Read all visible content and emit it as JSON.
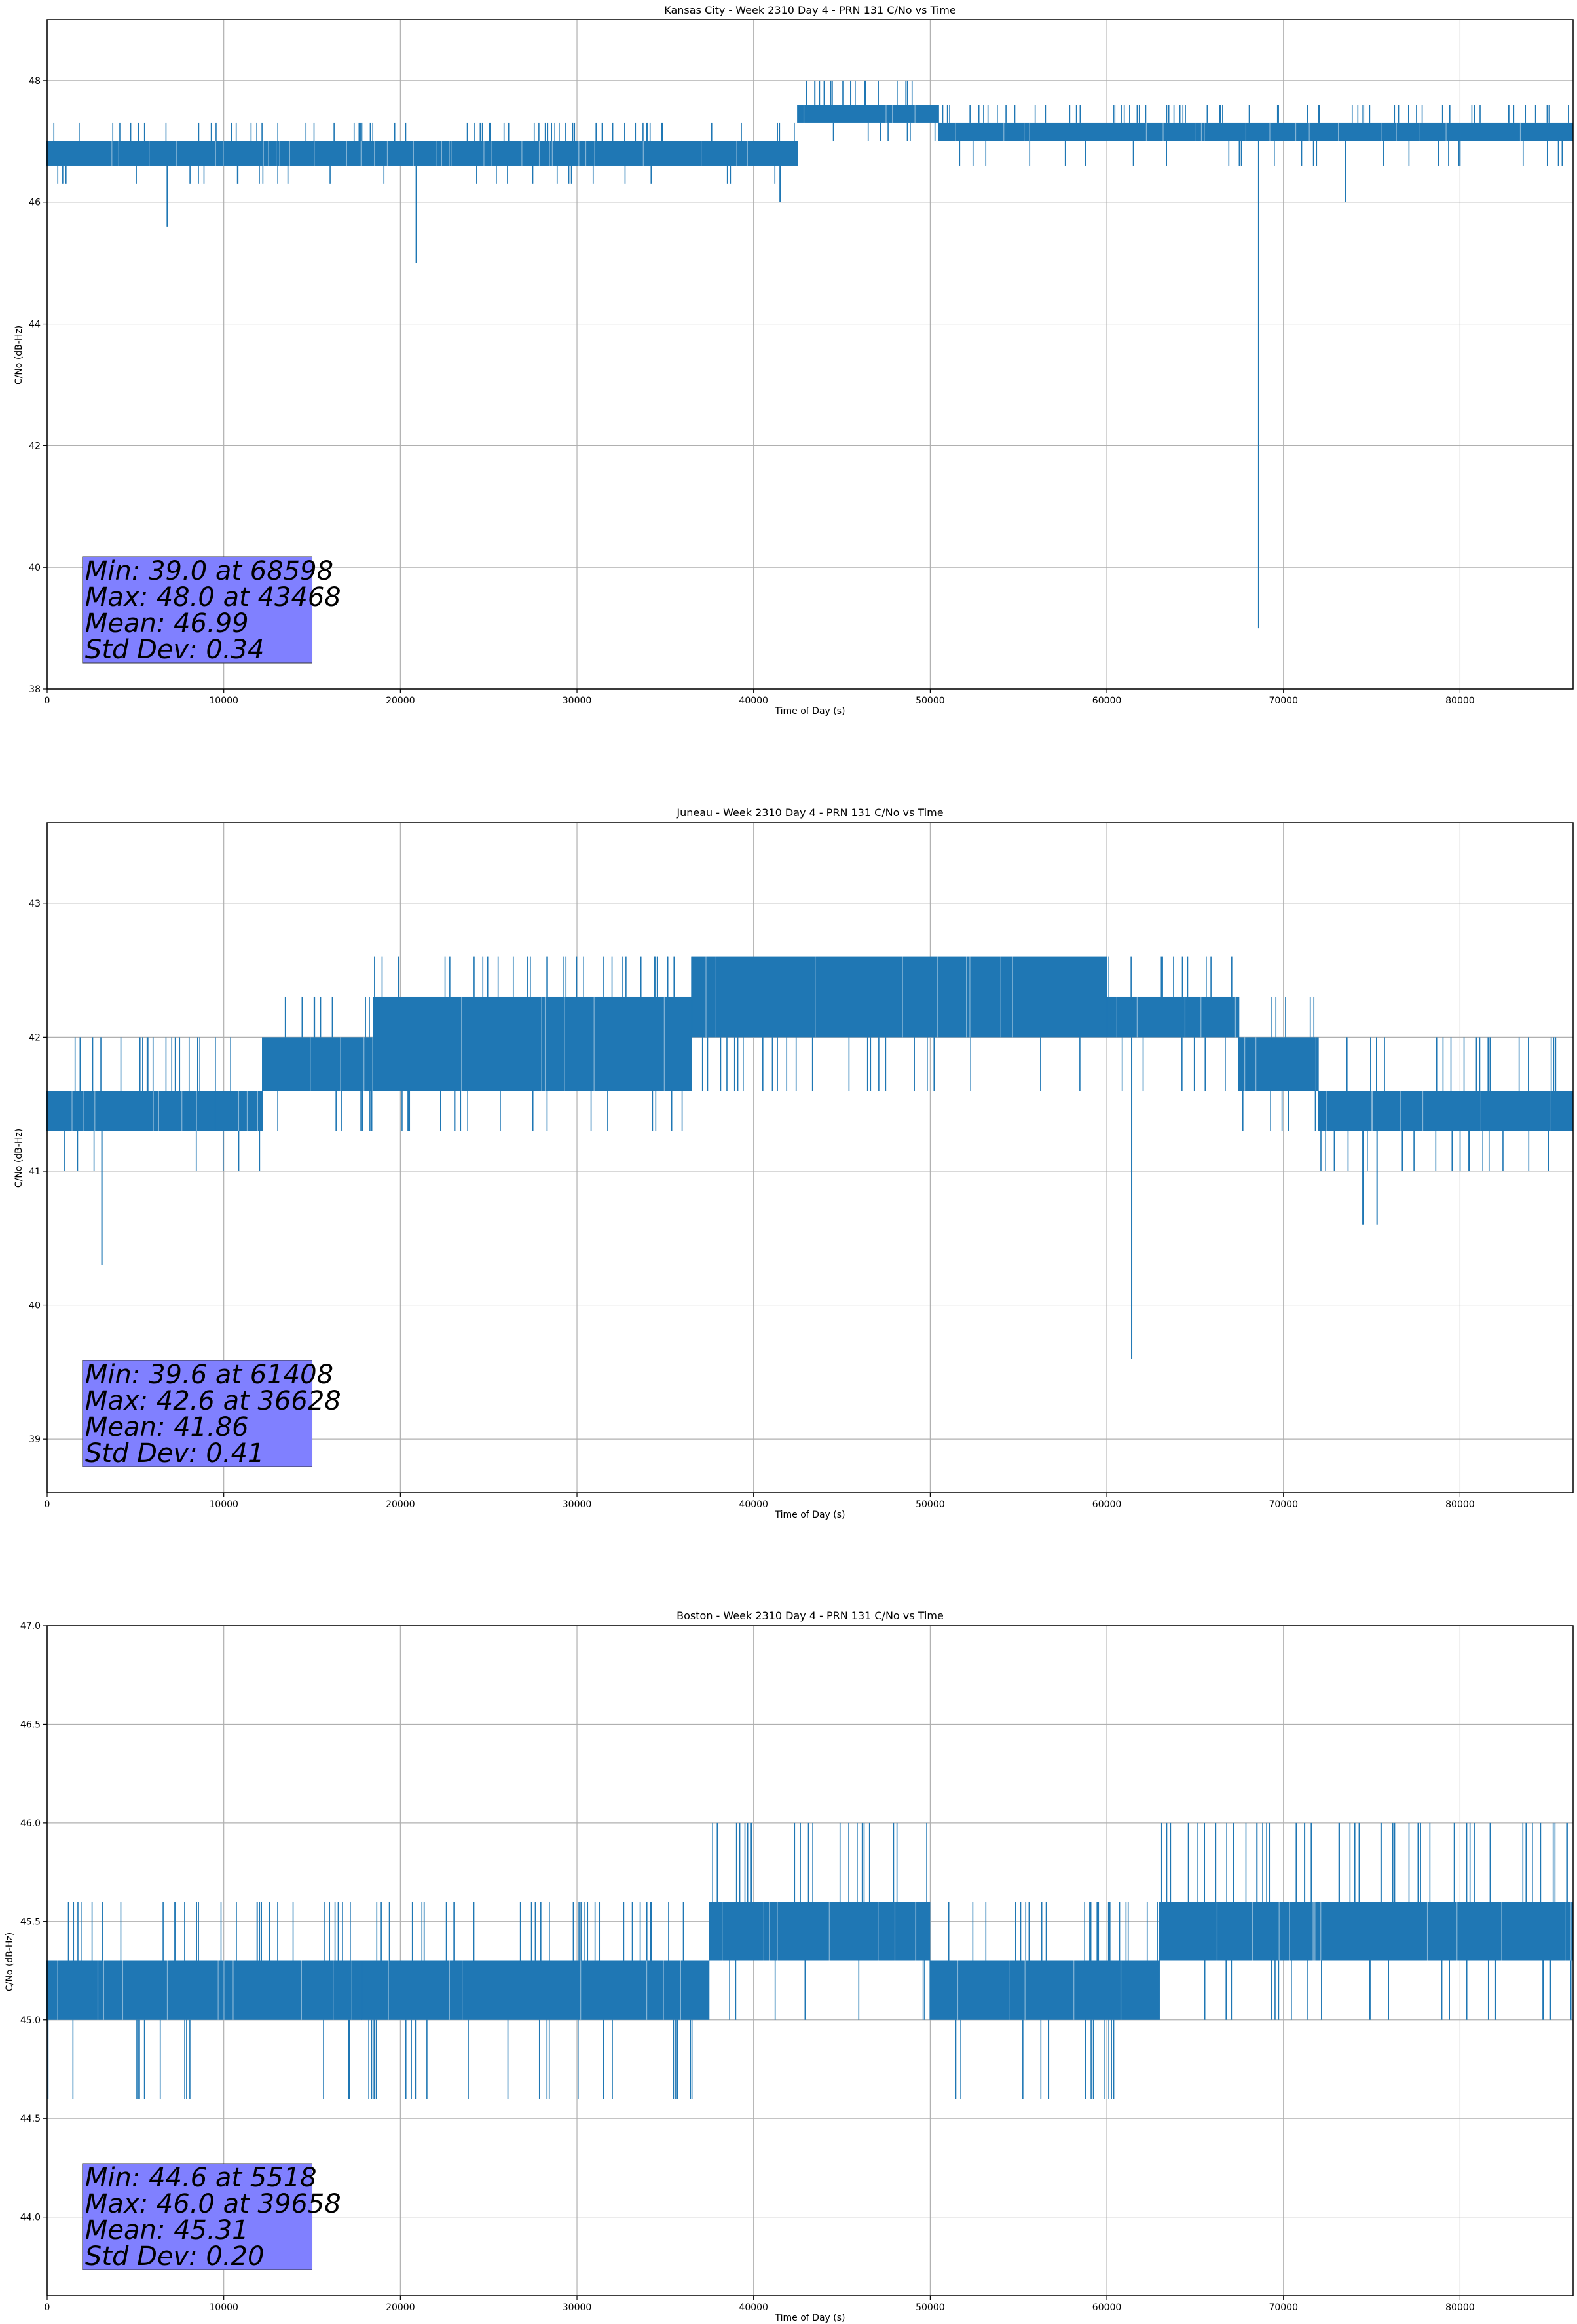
{
  "colors": {
    "line": "#1f77b4",
    "grid": "#b0b0b0",
    "stats_box": "#8080ff",
    "axis": "#000000"
  },
  "chart_data": [
    {
      "type": "line",
      "title": "Kansas City - Week 2310 Day 4 - PRN 131 C/No vs Time",
      "xlabel": "Time of Day (s)",
      "ylabel": "C/No (dB-Hz)",
      "xlim": [
        0,
        86400
      ],
      "ylim": [
        38,
        49
      ],
      "xticks": [
        0,
        10000,
        20000,
        30000,
        40000,
        50000,
        60000,
        70000,
        80000
      ],
      "yticks": [
        38,
        40,
        42,
        44,
        46,
        48
      ],
      "ytick_labels": [
        "38",
        "40",
        "42",
        "44",
        "46",
        "48"
      ],
      "grid": true,
      "segments": [
        {
          "x": [
            0,
            42500
          ],
          "low": 46.6,
          "high": 47.0,
          "spike_up": [
            47.3
          ],
          "spike_down": [
            46.3
          ]
        },
        {
          "x": [
            42500,
            50500
          ],
          "low": 47.3,
          "high": 47.6,
          "spike_up": [
            48.0
          ],
          "spike_down": [
            47.0
          ]
        },
        {
          "x": [
            50500,
            86400
          ],
          "low": 47.0,
          "high": 47.3,
          "spike_up": [
            47.6
          ],
          "spike_down": [
            46.6
          ]
        }
      ],
      "dips": [
        {
          "x": 6800,
          "y": 45.6
        },
        {
          "x": 20900,
          "y": 45.0
        },
        {
          "x": 41500,
          "y": 46.0
        },
        {
          "x": 68598,
          "y": 39.0
        },
        {
          "x": 73500,
          "y": 46.0
        }
      ],
      "peaks": [
        {
          "x": 43468,
          "y": 48.0
        },
        {
          "x": 45500,
          "y": 48.0
        },
        {
          "x": 46300,
          "y": 48.0
        }
      ],
      "stats": [
        "Min: 39.0 at 68598",
        "Max: 48.0 at 43468",
        "Mean: 46.99",
        "Std Dev: 0.34"
      ]
    },
    {
      "type": "line",
      "title": "Juneau - Week 2310 Day 4 - PRN 131 C/No vs Time",
      "xlabel": "Time of Day (s)",
      "ylabel": "C/No (dB-Hz)",
      "xlim": [
        0,
        86400
      ],
      "ylim": [
        38.6,
        43.6
      ],
      "xticks": [
        0,
        10000,
        20000,
        30000,
        40000,
        50000,
        60000,
        70000,
        80000
      ],
      "yticks": [
        39,
        40,
        41,
        42,
        43
      ],
      "ytick_labels": [
        "39",
        "40",
        "41",
        "42",
        "43"
      ],
      "grid": true,
      "segments": [
        {
          "x": [
            0,
            9500
          ],
          "low": 41.3,
          "high": 41.6,
          "spike_up": [
            42.0
          ],
          "spike_down": [
            41.0
          ]
        },
        {
          "x": [
            9500,
            12200
          ],
          "low": 41.3,
          "high": 41.6,
          "spike_up": [
            42.0
          ],
          "spike_down": [
            41.0
          ]
        },
        {
          "x": [
            12200,
            18500
          ],
          "low": 41.6,
          "high": 42.0,
          "spike_up": [
            42.3
          ],
          "spike_down": [
            41.3
          ]
        },
        {
          "x": [
            18500,
            36500
          ],
          "low": 41.6,
          "high": 42.3,
          "spike_up": [
            42.6
          ],
          "spike_down": [
            41.3
          ]
        },
        {
          "x": [
            36500,
            60000
          ],
          "low": 42.0,
          "high": 42.6,
          "spike_up": [
            42.6
          ],
          "spike_down": [
            41.6
          ]
        },
        {
          "x": [
            60000,
            67500
          ],
          "low": 42.0,
          "high": 42.3,
          "spike_up": [
            42.6
          ],
          "spike_down": [
            41.6
          ]
        },
        {
          "x": [
            67500,
            72000
          ],
          "low": 41.6,
          "high": 42.0,
          "spike_up": [
            42.3
          ],
          "spike_down": [
            41.3
          ]
        },
        {
          "x": [
            72000,
            86400
          ],
          "low": 41.3,
          "high": 41.6,
          "spike_up": [
            42.0
          ],
          "spike_down": [
            41.0
          ]
        }
      ],
      "dips": [
        {
          "x": 3100,
          "y": 40.3
        },
        {
          "x": 61408,
          "y": 39.6
        },
        {
          "x": 74500,
          "y": 40.6
        },
        {
          "x": 75300,
          "y": 40.6
        }
      ],
      "peaks": [
        {
          "x": 36628,
          "y": 42.6
        }
      ],
      "stats": [
        "Min: 39.6 at 61408",
        "Max: 42.6 at 36628",
        "Mean: 41.86",
        "Std Dev: 0.41"
      ]
    },
    {
      "type": "line",
      "title": "Boston - Week 2310 Day 4 - PRN 131 C/No vs Time",
      "xlabel": "Time of Day (s)",
      "ylabel": "C/No (dB-Hz)",
      "xlim": [
        0,
        86400
      ],
      "ylim": [
        43.6,
        47.0
      ],
      "xticks": [
        0,
        10000,
        20000,
        30000,
        40000,
        50000,
        60000,
        70000,
        80000
      ],
      "yticks": [
        44.0,
        44.5,
        45.0,
        45.5,
        46.0,
        46.5,
        47.0
      ],
      "ytick_labels": [
        "44.0",
        "44.5",
        "45.0",
        "45.5",
        "46.0",
        "46.5",
        "47.0"
      ],
      "grid": true,
      "segments": [
        {
          "x": [
            0,
            17800
          ],
          "low": 45.0,
          "high": 45.3,
          "spike_up": [
            45.6
          ],
          "spike_down": [
            44.6
          ]
        },
        {
          "x": [
            17800,
            37500
          ],
          "low": 45.0,
          "high": 45.3,
          "spike_up": [
            45.6
          ],
          "spike_down": [
            44.6
          ]
        },
        {
          "x": [
            37500,
            50000
          ],
          "low": 45.3,
          "high": 45.6,
          "spike_up": [
            46.0
          ],
          "spike_down": [
            45.0
          ]
        },
        {
          "x": [
            50000,
            63000
          ],
          "low": 45.0,
          "high": 45.3,
          "spike_up": [
            45.6
          ],
          "spike_down": [
            44.6
          ]
        },
        {
          "x": [
            63000,
            86400
          ],
          "low": 45.3,
          "high": 45.6,
          "spike_up": [
            46.0
          ],
          "spike_down": [
            45.0
          ]
        }
      ],
      "dips": [
        {
          "x": 5518,
          "y": 44.6
        },
        {
          "x": 31500,
          "y": 44.6
        },
        {
          "x": 56700,
          "y": 44.6
        },
        {
          "x": 74900,
          "y": 45.0
        },
        {
          "x": 84700,
          "y": 45.0
        }
      ],
      "peaks": [
        {
          "x": 39658,
          "y": 46.0
        },
        {
          "x": 63600,
          "y": 46.0
        },
        {
          "x": 68500,
          "y": 46.0
        },
        {
          "x": 71200,
          "y": 46.0
        }
      ],
      "stats": [
        "Min: 44.6 at 5518",
        "Max: 46.0 at 39658",
        "Mean: 45.31",
        "Std Dev: 0.20"
      ]
    }
  ]
}
